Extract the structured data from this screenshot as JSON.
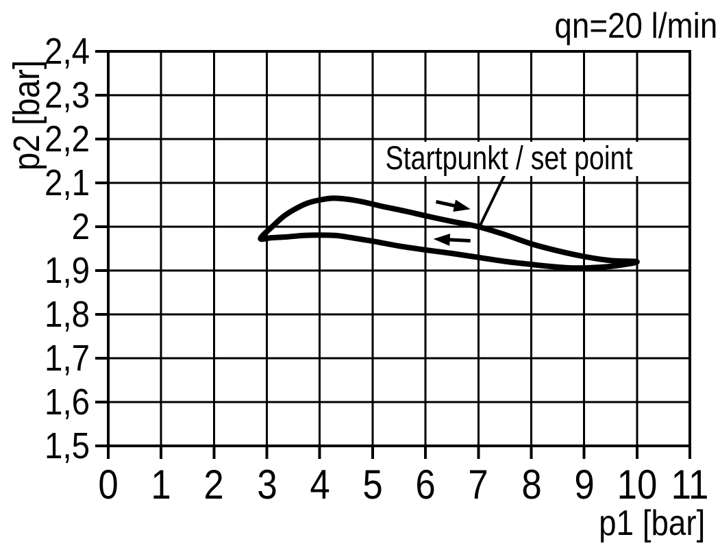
{
  "chart_data": {
    "type": "line",
    "title": "qn=20 l/min",
    "xlabel": "p1 [bar]",
    "ylabel": "p2 [bar]",
    "xlim": [
      0,
      11
    ],
    "ylim": [
      1.5,
      2.4
    ],
    "grid": true,
    "legend": "none",
    "colors": {
      "stroke": "#000000",
      "background": "#ffffff"
    },
    "x_ticks": {
      "values": [
        0,
        1,
        2,
        3,
        4,
        5,
        6,
        7,
        8,
        9,
        10,
        11
      ],
      "labels": [
        "0",
        "1",
        "2",
        "3",
        "4",
        "5",
        "6",
        "7",
        "8",
        "9",
        "10",
        "11"
      ]
    },
    "y_ticks": {
      "values": [
        2.4,
        2.3,
        2.2,
        2.1,
        2.0,
        1.9,
        1.8,
        1.7,
        1.6,
        1.5
      ],
      "labels": [
        "2,4",
        "2,3",
        "2,2",
        "2,1",
        "2",
        "1,9",
        "1,8",
        "1,7",
        "1,6",
        "1,5"
      ]
    },
    "series": [
      {
        "name": "hysteresis-upper-branch-p1-increasing",
        "points": [
          [
            2.88,
            1.973
          ],
          [
            3.1,
            2.0
          ],
          [
            3.3,
            2.022
          ],
          [
            3.5,
            2.038
          ],
          [
            3.75,
            2.053
          ],
          [
            4.0,
            2.061
          ],
          [
            4.25,
            2.065
          ],
          [
            4.5,
            2.063
          ],
          [
            4.8,
            2.057
          ],
          [
            5.2,
            2.046
          ],
          [
            5.6,
            2.036
          ],
          [
            6.0,
            2.025
          ],
          [
            6.5,
            2.012
          ],
          [
            7.0,
            2.0
          ],
          [
            7.5,
            1.982
          ],
          [
            8.0,
            1.961
          ],
          [
            8.5,
            1.945
          ],
          [
            9.0,
            1.932
          ],
          [
            9.5,
            1.923
          ],
          [
            10.0,
            1.92
          ]
        ]
      },
      {
        "name": "hysteresis-lower-branch-p1-decreasing",
        "points": [
          [
            10.0,
            1.92
          ],
          [
            9.6,
            1.911
          ],
          [
            9.2,
            1.907
          ],
          [
            8.8,
            1.906
          ],
          [
            8.4,
            1.909
          ],
          [
            8.0,
            1.914
          ],
          [
            7.5,
            1.921
          ],
          [
            7.0,
            1.93
          ],
          [
            6.5,
            1.939
          ],
          [
            6.0,
            1.947
          ],
          [
            5.5,
            1.956
          ],
          [
            5.0,
            1.967
          ],
          [
            4.6,
            1.975
          ],
          [
            4.3,
            1.98
          ],
          [
            4.0,
            1.981
          ],
          [
            3.7,
            1.98
          ],
          [
            3.4,
            1.977
          ],
          [
            3.1,
            1.975
          ],
          [
            2.88,
            1.973
          ]
        ]
      }
    ],
    "annotation": {
      "label": "Startpunkt / set point",
      "target_point": [
        7.0,
        2.0
      ],
      "leader": {
        "from": [
          7.5,
          2.119
        ],
        "to": [
          7.03,
          2.002
        ]
      },
      "arrows": [
        {
          "direction": "right",
          "from": [
            6.2,
            2.057
          ],
          "to": [
            6.85,
            2.04
          ]
        },
        {
          "direction": "left",
          "from": [
            6.85,
            1.968
          ],
          "to": [
            6.15,
            1.972
          ]
        }
      ]
    }
  }
}
